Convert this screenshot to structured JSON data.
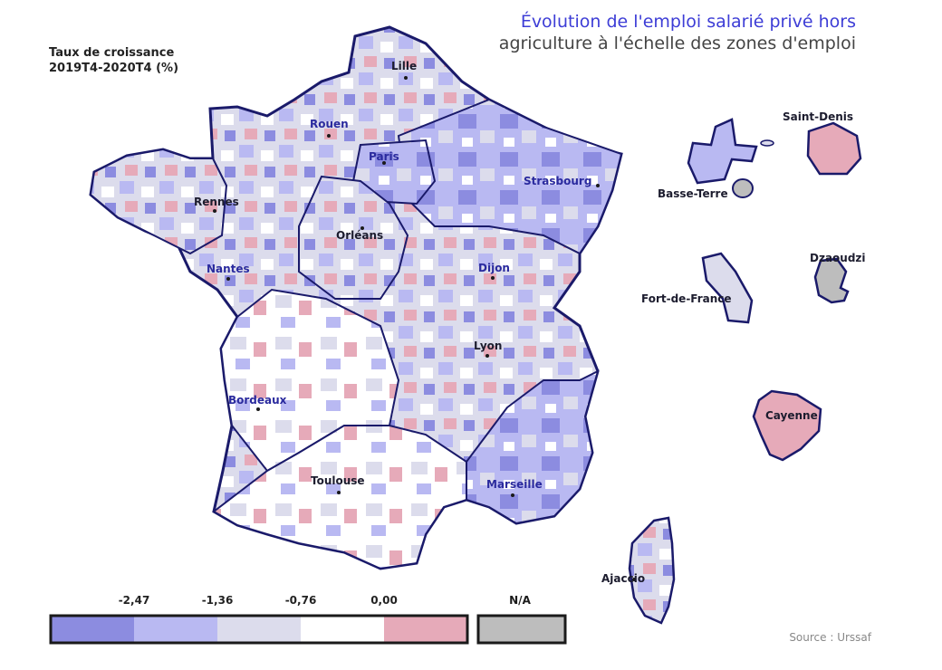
{
  "title": {
    "line1": "Évolution de l'emploi salarié privé hors",
    "line2": "agriculture à l'échelle des zones d'emploi"
  },
  "legend": {
    "title_line1": "Taux de croissance",
    "title_line2": "2019T4-2020T4 (%)",
    "breaks": [
      "-2,47",
      "-1,36",
      "-0,76",
      "0,00"
    ],
    "na_label": "N/A",
    "classes": [
      {
        "color": "#8c8ce0"
      },
      {
        "color": "#b9b9f2"
      },
      {
        "color": "#dcdcec"
      },
      {
        "color": "#ffffff"
      },
      {
        "color": "#e6aab9"
      }
    ],
    "na_color": "#bdbdbd"
  },
  "cities": {
    "lille": "Lille",
    "rouen": "Rouen",
    "paris": "Paris",
    "strasbourg": "Strasbourg",
    "rennes": "Rennes",
    "orleans": "Orléans",
    "nantes": "Nantes",
    "dijon": "Dijon",
    "lyon": "Lyon",
    "bordeaux": "Bordeaux",
    "toulouse": "Toulouse",
    "marseille": "Marseille",
    "ajaccio": "Ajaccio"
  },
  "overseas": {
    "saint_denis": "Saint-Denis",
    "basse_terre": "Basse-Terre",
    "dzaoudzi": "Dzaoudzi",
    "fort_de_france": "Fort-de-France",
    "cayenne": "Cayenne"
  },
  "source": "Source : Urssaf"
}
